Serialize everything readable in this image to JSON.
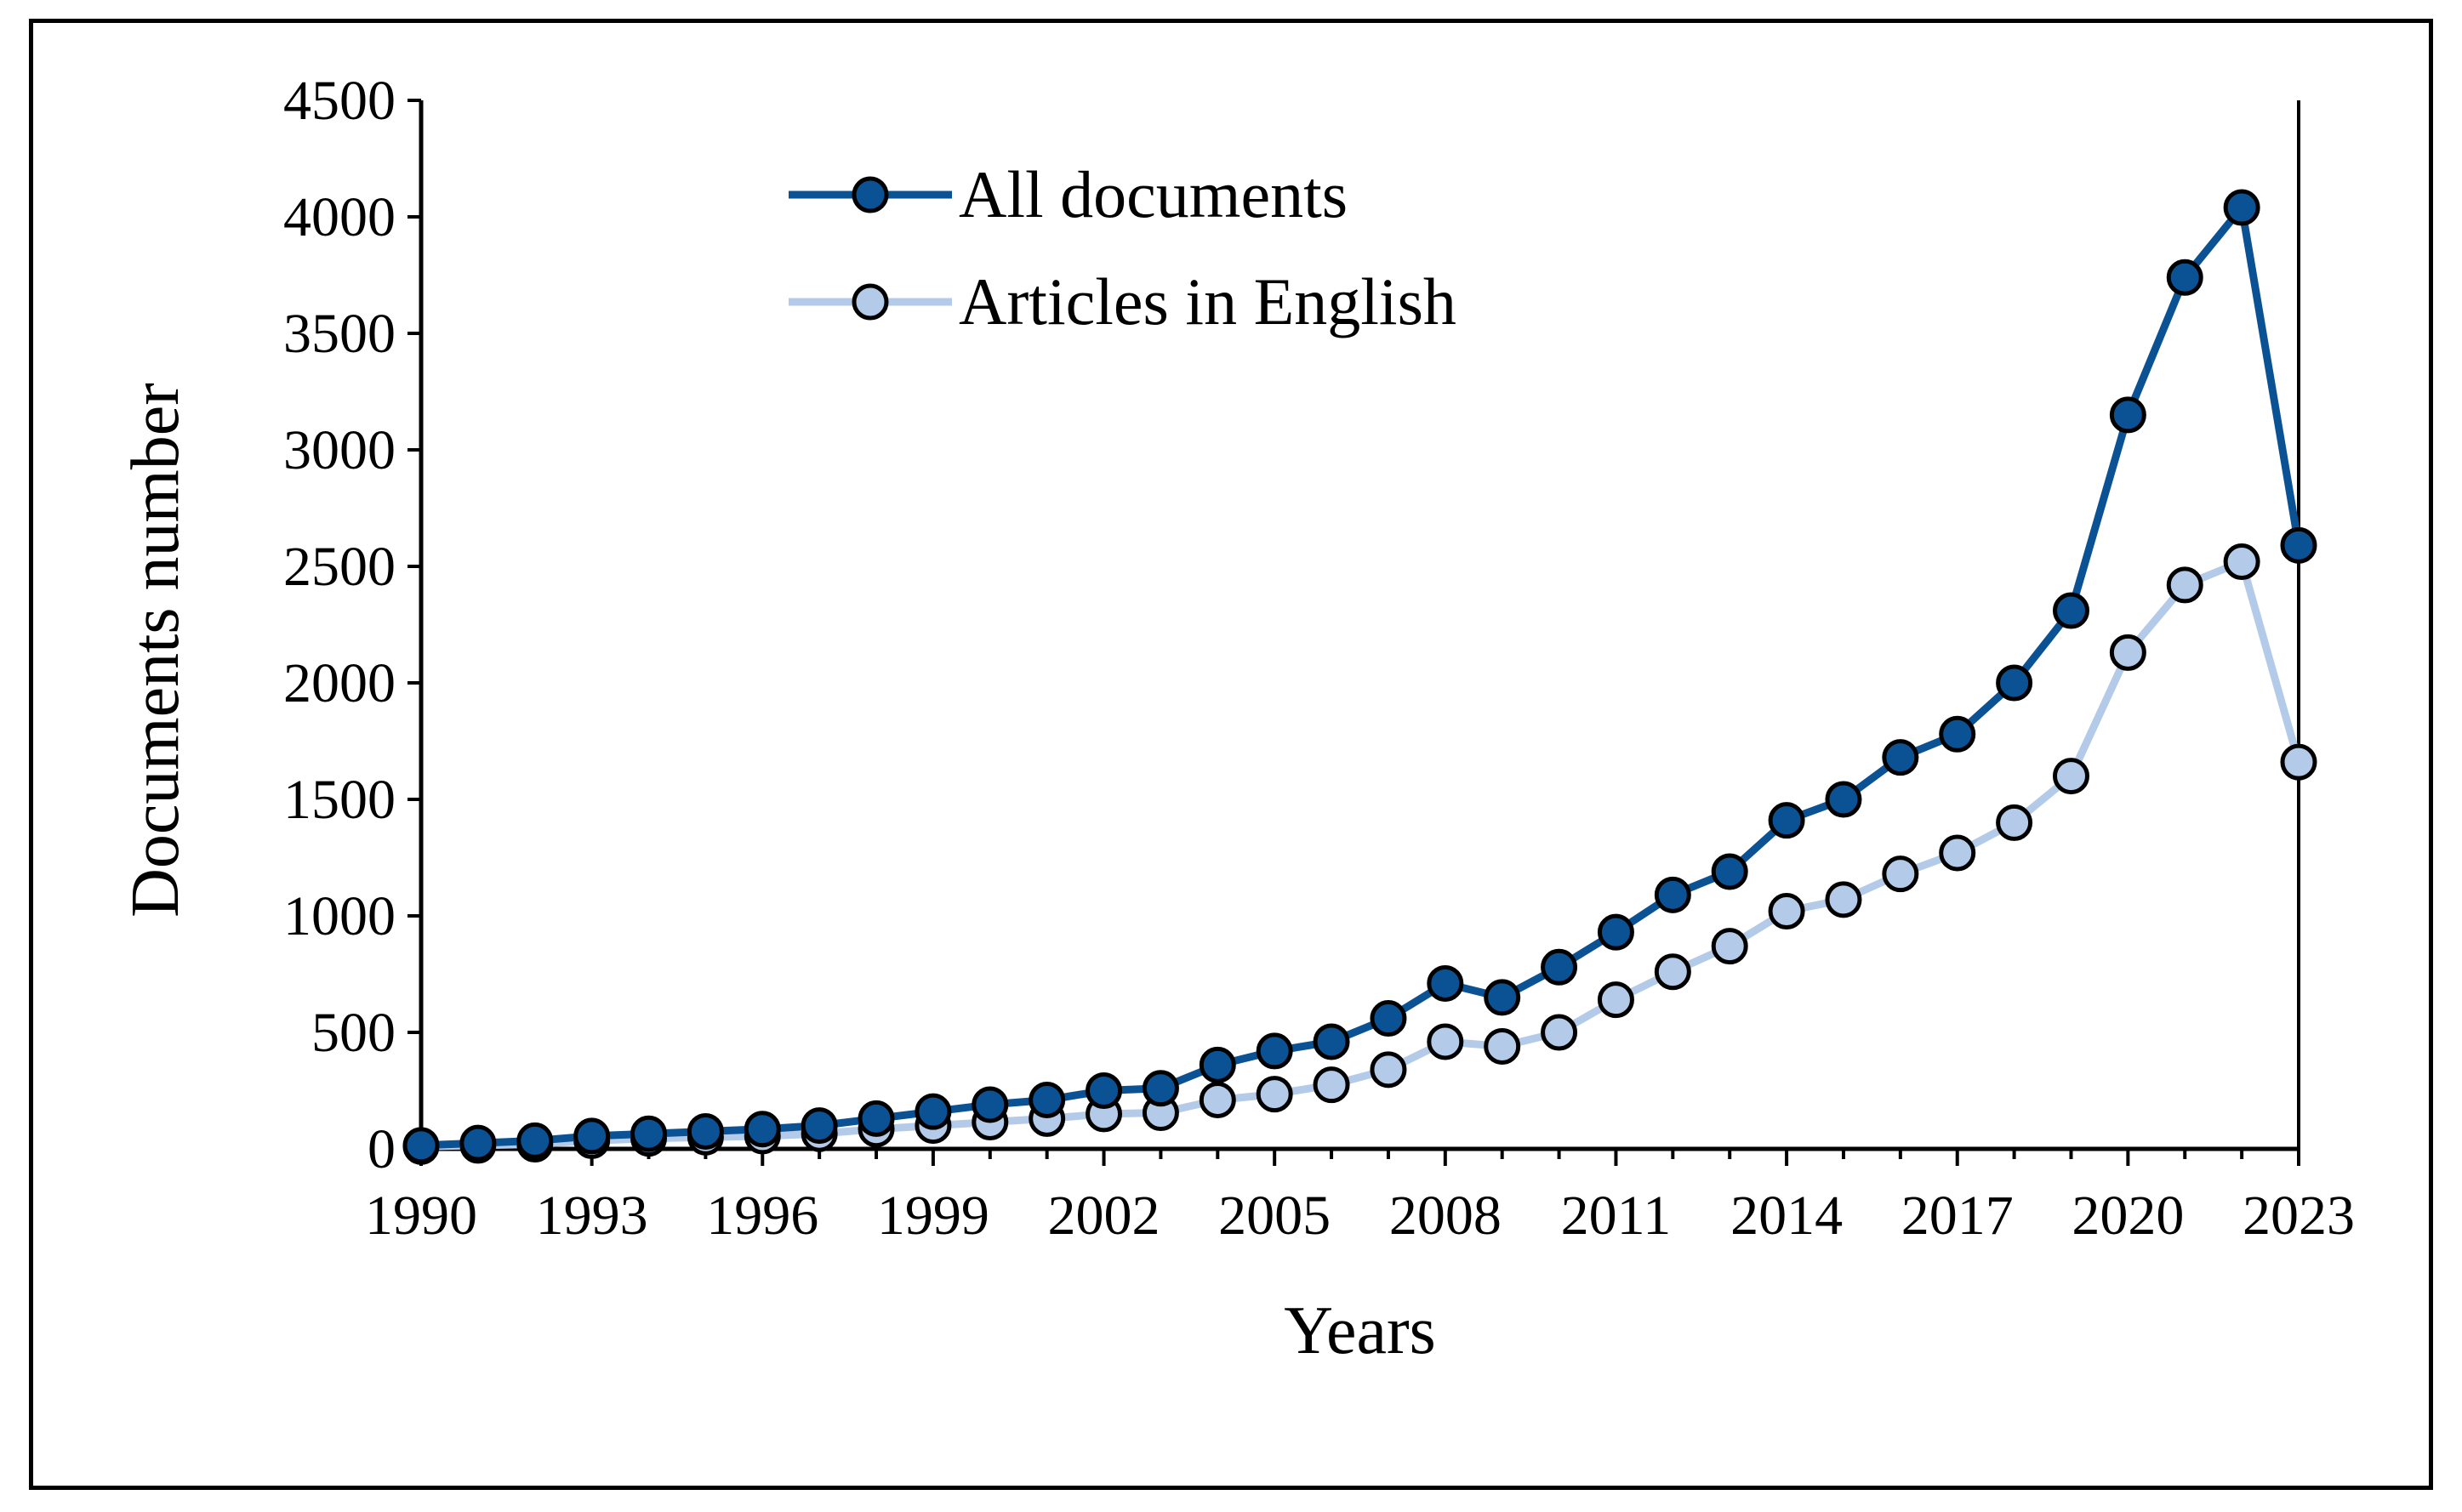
{
  "chart_data": {
    "type": "line",
    "title": "",
    "xlabel": "Years",
    "ylabel": "Documents number",
    "x": [
      1990,
      1991,
      1992,
      1993,
      1994,
      1995,
      1996,
      1997,
      1998,
      1999,
      2000,
      2001,
      2002,
      2003,
      2004,
      2005,
      2006,
      2007,
      2008,
      2009,
      2010,
      2011,
      2012,
      2013,
      2014,
      2015,
      2016,
      2017,
      2018,
      2019,
      2020,
      2021,
      2022,
      2023
    ],
    "x_ticks": [
      "1990",
      "1993",
      "1996",
      "1999",
      "2002",
      "2005",
      "2008",
      "2011",
      "2014",
      "2017",
      "2020",
      "2023"
    ],
    "y_ticks": [
      "0",
      "500",
      "1000",
      "1500",
      "2000",
      "2500",
      "3000",
      "3500",
      "4000",
      "4500"
    ],
    "xlim": [
      1990,
      2023
    ],
    "ylim": [
      0,
      4500
    ],
    "grid": false,
    "legend_position": "top-center",
    "series": [
      {
        "name": "All documents",
        "color": "#0b5294",
        "values": [
          15,
          25,
          35,
          55,
          65,
          75,
          85,
          100,
          130,
          160,
          190,
          210,
          250,
          260,
          360,
          420,
          460,
          560,
          710,
          650,
          780,
          930,
          1090,
          1190,
          1410,
          1500,
          1680,
          1780,
          2000,
          2310,
          3150,
          3740,
          4040,
          2590
        ]
      },
      {
        "name": "Articles in English",
        "color": "#b3cbe8",
        "values": [
          10,
          15,
          20,
          35,
          45,
          50,
          55,
          65,
          85,
          100,
          115,
          130,
          150,
          155,
          210,
          235,
          275,
          340,
          460,
          440,
          500,
          640,
          760,
          870,
          1020,
          1070,
          1180,
          1270,
          1400,
          1600,
          2130,
          2420,
          2520,
          1660
        ]
      }
    ]
  }
}
